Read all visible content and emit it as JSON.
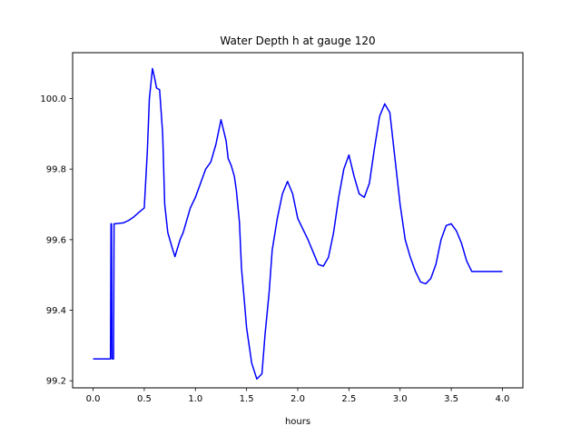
{
  "chart_data": {
    "type": "line",
    "title": "Water Depth h at gauge 120",
    "xlabel": "hours",
    "ylabel": "",
    "xlim": [
      -0.2,
      4.2
    ],
    "ylim": [
      99.18,
      100.13
    ],
    "xticks": [
      0.0,
      0.5,
      1.0,
      1.5,
      2.0,
      2.5,
      3.0,
      3.5,
      4.0
    ],
    "xtick_labels": [
      "0.0",
      "0.5",
      "1.0",
      "1.5",
      "2.0",
      "2.5",
      "3.0",
      "3.5",
      "4.0"
    ],
    "yticks": [
      99.2,
      99.4,
      99.6,
      99.8,
      100.0
    ],
    "ytick_labels": [
      "99.2",
      "99.4",
      "99.6",
      "99.8",
      "100.0"
    ],
    "grid": false,
    "line_color": "#0000ff",
    "series": [
      {
        "x": [
          0.0,
          0.17,
          0.175,
          0.18,
          0.185,
          0.2,
          0.205,
          0.21,
          0.215,
          0.3,
          0.35,
          0.4,
          0.45,
          0.5,
          0.53,
          0.55,
          0.58,
          0.6,
          0.62,
          0.65,
          0.68,
          0.7,
          0.73,
          0.75,
          0.78,
          0.8,
          0.85,
          0.88,
          0.92,
          0.95,
          1.0,
          1.05,
          1.1,
          1.15,
          1.2,
          1.25,
          1.3,
          1.32,
          1.35,
          1.38,
          1.4,
          1.43,
          1.45,
          1.48,
          1.5,
          1.55,
          1.6,
          1.65,
          1.68,
          1.72,
          1.75,
          1.8,
          1.85,
          1.9,
          1.95,
          2.0,
          2.05,
          2.1,
          2.15,
          2.2,
          2.25,
          2.3,
          2.35,
          2.4,
          2.45,
          2.5,
          2.55,
          2.6,
          2.65,
          2.7,
          2.75,
          2.8,
          2.85,
          2.9,
          2.95,
          3.0,
          3.05,
          3.1,
          3.15,
          3.2,
          3.25,
          3.3,
          3.35,
          3.4,
          3.45,
          3.5,
          3.55,
          3.6,
          3.65,
          3.7,
          3.75,
          3.8,
          3.85,
          3.9,
          3.95,
          4.0
        ],
        "y": [
          99.262,
          99.262,
          99.645,
          99.645,
          99.262,
          99.262,
          99.645,
          99.645,
          99.645,
          99.648,
          99.655,
          99.665,
          99.678,
          99.69,
          99.85,
          100.0,
          100.085,
          100.06,
          100.03,
          100.025,
          99.9,
          99.7,
          99.62,
          99.6,
          99.57,
          99.552,
          99.6,
          99.62,
          99.66,
          99.69,
          99.72,
          99.76,
          99.8,
          99.82,
          99.87,
          99.94,
          99.88,
          99.83,
          99.81,
          99.78,
          99.74,
          99.65,
          99.52,
          99.42,
          99.35,
          99.25,
          99.205,
          99.22,
          99.33,
          99.45,
          99.57,
          99.66,
          99.73,
          99.765,
          99.73,
          99.66,
          99.63,
          99.6,
          99.565,
          99.53,
          99.525,
          99.55,
          99.62,
          99.72,
          99.8,
          99.84,
          99.78,
          99.73,
          99.72,
          99.76,
          99.86,
          99.95,
          99.985,
          99.96,
          99.83,
          99.7,
          99.6,
          99.55,
          99.51,
          99.48,
          99.475,
          99.49,
          99.53,
          99.6,
          99.64,
          99.645,
          99.625,
          99.59,
          99.54,
          99.51,
          99.51,
          99.51,
          99.51,
          99.51,
          99.51,
          99.51
        ]
      }
    ]
  }
}
